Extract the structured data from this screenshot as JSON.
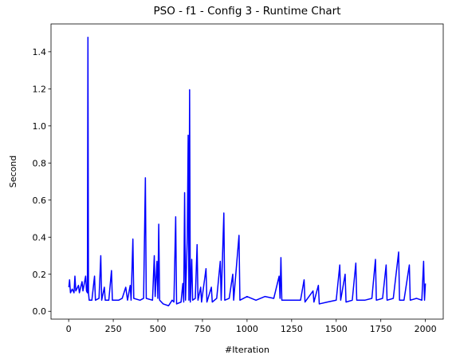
{
  "chart_data": {
    "type": "line",
    "title": "PSO - f1 - Config 3 - Runtime Chart",
    "xlabel": "#Iteration",
    "ylabel": "Second",
    "x": [
      1,
      5,
      10,
      20,
      30,
      35,
      40,
      55,
      60,
      75,
      80,
      95,
      100,
      105,
      108,
      111,
      115,
      130,
      145,
      150,
      170,
      180,
      185,
      200,
      205,
      225,
      240,
      245,
      280,
      300,
      320,
      330,
      345,
      350,
      360,
      365,
      400,
      420,
      430,
      435,
      470,
      480,
      485,
      495,
      500,
      505,
      510,
      530,
      560,
      580,
      590,
      600,
      605,
      630,
      640,
      645,
      650,
      655,
      665,
      670,
      674,
      678,
      682,
      690,
      695,
      710,
      720,
      725,
      740,
      745,
      770,
      775,
      800,
      805,
      830,
      850,
      855,
      870,
      875,
      900,
      920,
      925,
      955,
      960,
      1000,
      1050,
      1100,
      1150,
      1180,
      1185,
      1190,
      1195,
      1250,
      1300,
      1320,
      1325,
      1370,
      1375,
      1400,
      1405,
      1450,
      1500,
      1520,
      1525,
      1550,
      1555,
      1590,
      1610,
      1615,
      1660,
      1700,
      1720,
      1725,
      1760,
      1780,
      1785,
      1820,
      1850,
      1855,
      1880,
      1910,
      1915,
      1950,
      1980,
      1990,
      1995,
      2000
    ],
    "series": [
      {
        "color": "#0000ff",
        "values": [
          0.13,
          0.17,
          0.1,
          0.12,
          0.1,
          0.19,
          0.11,
          0.14,
          0.1,
          0.16,
          0.11,
          0.19,
          0.11,
          0.1,
          1.478,
          0.1,
          0.06,
          0.06,
          0.19,
          0.06,
          0.07,
          0.3,
          0.06,
          0.13,
          0.06,
          0.06,
          0.22,
          0.06,
          0.06,
          0.07,
          0.13,
          0.06,
          0.14,
          0.06,
          0.39,
          0.07,
          0.06,
          0.07,
          0.72,
          0.07,
          0.06,
          0.3,
          0.08,
          0.27,
          0.07,
          0.47,
          0.06,
          0.04,
          0.03,
          0.06,
          0.05,
          0.51,
          0.04,
          0.05,
          0.15,
          0.05,
          0.64,
          0.06,
          0.4,
          0.95,
          0.06,
          1.195,
          0.05,
          0.28,
          0.06,
          0.07,
          0.36,
          0.06,
          0.13,
          0.05,
          0.23,
          0.05,
          0.13,
          0.05,
          0.07,
          0.27,
          0.06,
          0.53,
          0.06,
          0.07,
          0.2,
          0.06,
          0.41,
          0.06,
          0.08,
          0.06,
          0.08,
          0.07,
          0.19,
          0.07,
          0.29,
          0.06,
          0.06,
          0.06,
          0.17,
          0.05,
          0.11,
          0.05,
          0.14,
          0.04,
          0.05,
          0.06,
          0.25,
          0.06,
          0.2,
          0.05,
          0.06,
          0.26,
          0.06,
          0.06,
          0.07,
          0.28,
          0.06,
          0.07,
          0.25,
          0.06,
          0.07,
          0.32,
          0.06,
          0.06,
          0.25,
          0.06,
          0.07,
          0.06,
          0.27,
          0.06,
          0.15
        ]
      }
    ],
    "xlim": [
      -99,
      2100
    ],
    "ylim": [
      -0.042,
      1.55
    ],
    "xticks": [
      0,
      250,
      500,
      750,
      1000,
      1250,
      1500,
      1750,
      2000
    ],
    "yticks": [
      {
        "value": 0,
        "label": "0.0"
      },
      0.2,
      0.4,
      0.6,
      0.8,
      {
        "value": 1,
        "label": "1.0"
      },
      1.2,
      1.4
    ],
    "grid": false
  }
}
